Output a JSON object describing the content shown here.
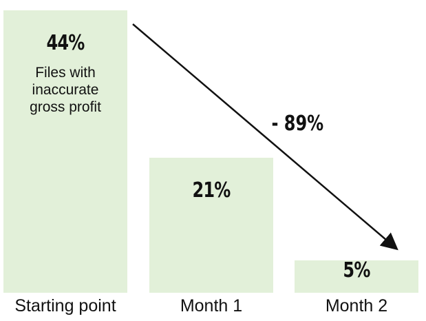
{
  "chart_data": {
    "type": "bar",
    "categories": [
      "Starting point",
      "Month 1",
      "Month 2"
    ],
    "values": [
      44,
      21,
      5
    ],
    "value_labels": [
      "44%",
      "21%",
      "5%"
    ],
    "color": "#e2f0d9",
    "description": "Files with inaccurate gross profit",
    "annotation": "- 89%"
  }
}
